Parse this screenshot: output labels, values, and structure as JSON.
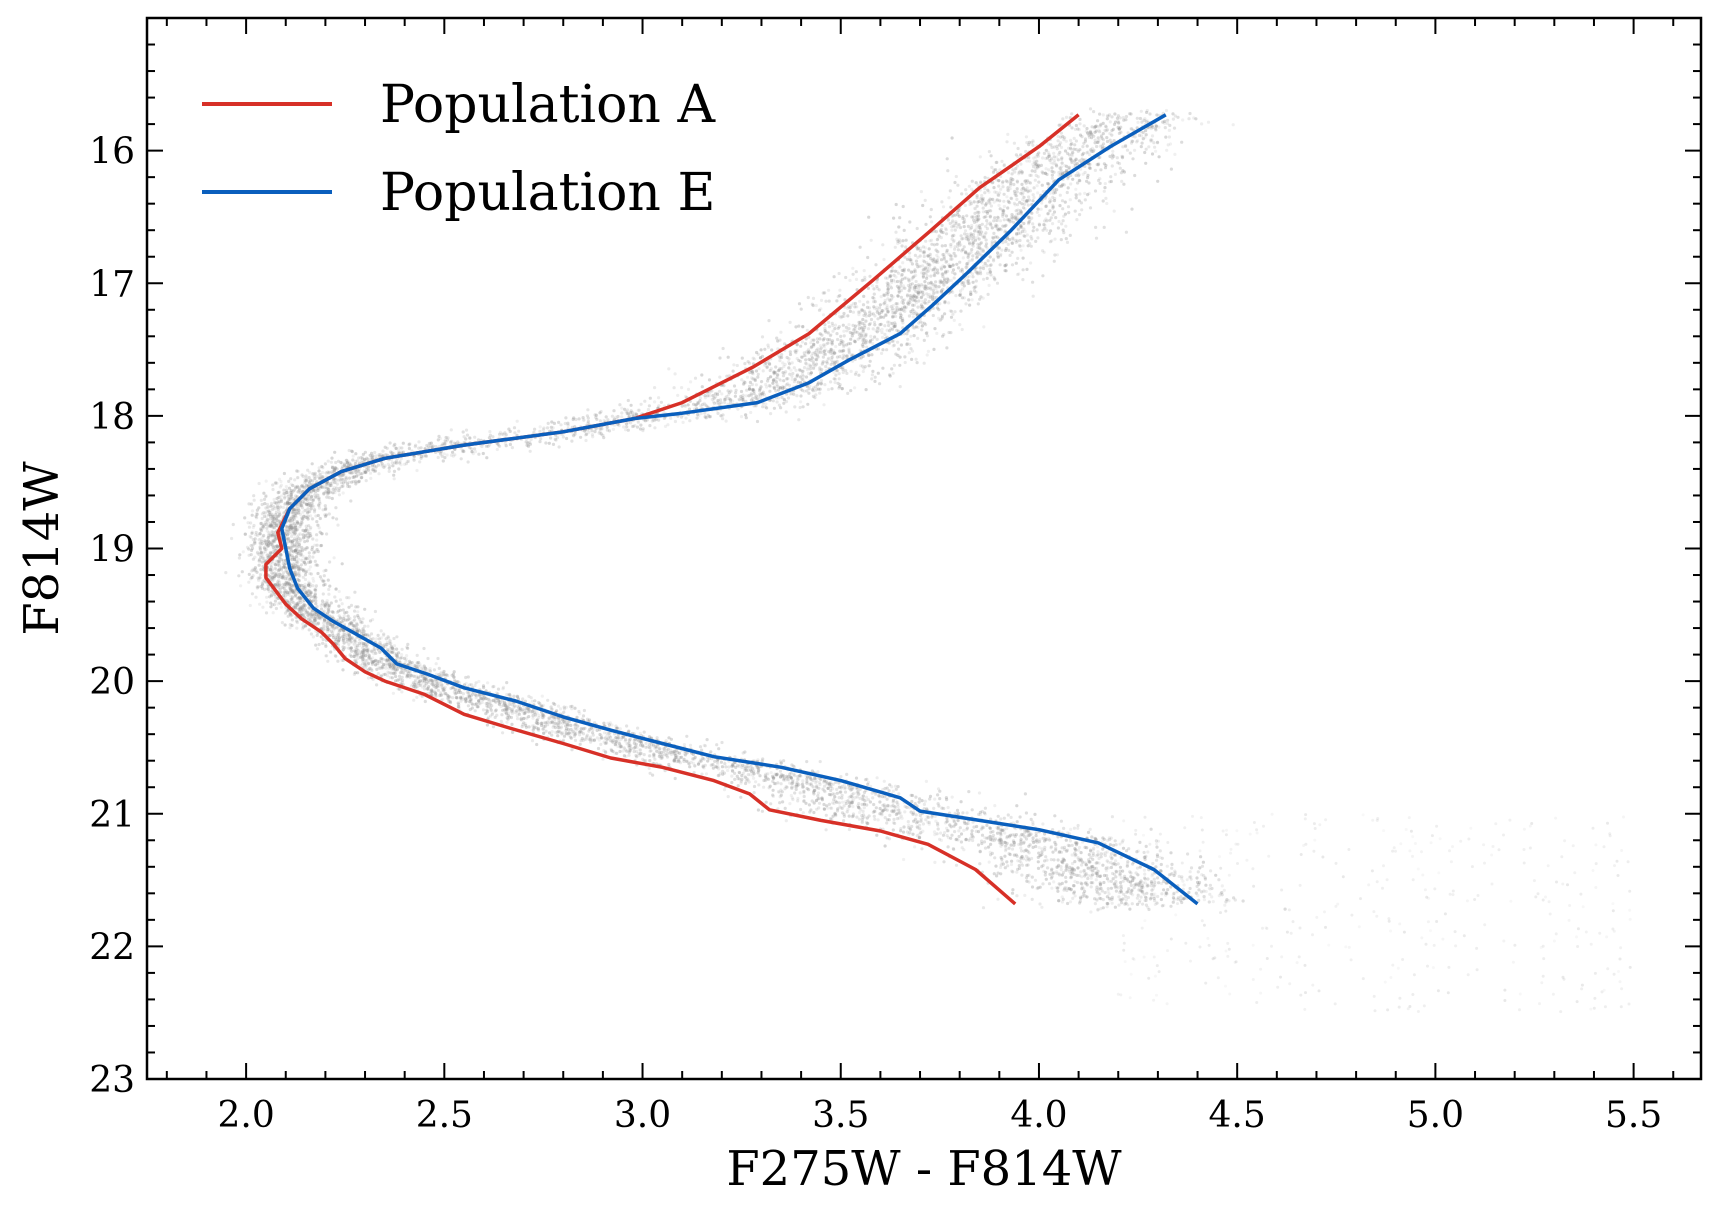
{
  "chart_data": {
    "type": "scatter",
    "title": "",
    "xlabel": "F275W - F814W",
    "ylabel": "F814W",
    "xlim": [
      1.75,
      5.67
    ],
    "ylim": [
      23.0,
      15.0
    ],
    "y_inverted": true,
    "x_ticks": [
      2.0,
      2.5,
      3.0,
      3.5,
      4.0,
      4.5,
      5.0,
      5.5
    ],
    "x_tick_labels": [
      "2.0",
      "2.5",
      "3.0",
      "3.5",
      "4.0",
      "4.5",
      "5.0",
      "5.5"
    ],
    "y_ticks": [
      16,
      17,
      18,
      19,
      20,
      21,
      22,
      23
    ],
    "y_tick_labels": [
      "16",
      "17",
      "18",
      "19",
      "20",
      "21",
      "22",
      "23"
    ],
    "grid": false,
    "legend_position": "top-left",
    "background_points_color": "#8c8c8c",
    "series": [
      {
        "name": "Population A",
        "color": "#d73027",
        "x": [
          4.1,
          4.0,
          3.85,
          3.72,
          3.58,
          3.42,
          3.28,
          3.1,
          2.98,
          2.8,
          2.55,
          2.35,
          2.24,
          2.16,
          2.11,
          2.08,
          2.09,
          2.05,
          2.05,
          2.07,
          2.1,
          2.14,
          2.19,
          2.22,
          2.25,
          2.3,
          2.35,
          2.45,
          2.55,
          2.66,
          2.8,
          2.92,
          3.05,
          3.18,
          3.27,
          3.32,
          3.45,
          3.6,
          3.72,
          3.84,
          3.94
        ],
        "y": [
          15.73,
          15.97,
          16.28,
          16.62,
          16.98,
          17.38,
          17.63,
          17.9,
          18.02,
          18.12,
          18.22,
          18.32,
          18.42,
          18.55,
          18.7,
          18.88,
          19.0,
          19.12,
          19.22,
          19.3,
          19.42,
          19.53,
          19.63,
          19.72,
          19.83,
          19.93,
          20.0,
          20.1,
          20.25,
          20.35,
          20.47,
          20.58,
          20.65,
          20.75,
          20.85,
          20.97,
          21.05,
          21.13,
          21.23,
          21.42,
          21.68
        ]
      },
      {
        "name": "Population E",
        "color": "#0a5fbd",
        "x": [
          4.32,
          4.18,
          4.05,
          3.93,
          3.82,
          3.73,
          3.65,
          3.52,
          3.42,
          3.29,
          3.1,
          2.98,
          2.8,
          2.55,
          2.35,
          2.24,
          2.16,
          2.11,
          2.09,
          2.1,
          2.11,
          2.13,
          2.17,
          2.22,
          2.28,
          2.34,
          2.38,
          2.46,
          2.55,
          2.68,
          2.8,
          2.92,
          3.05,
          3.18,
          3.35,
          3.5,
          3.65,
          3.7,
          3.85,
          4.0,
          4.15,
          4.29,
          4.4
        ],
        "y": [
          15.73,
          15.97,
          16.22,
          16.6,
          16.92,
          17.17,
          17.38,
          17.58,
          17.75,
          17.9,
          17.98,
          18.02,
          18.12,
          18.22,
          18.32,
          18.42,
          18.55,
          18.7,
          18.85,
          19.0,
          19.15,
          19.3,
          19.45,
          19.55,
          19.65,
          19.75,
          19.87,
          19.95,
          20.05,
          20.15,
          20.27,
          20.37,
          20.47,
          20.57,
          20.65,
          20.75,
          20.88,
          20.98,
          21.05,
          21.12,
          21.22,
          21.42,
          21.68
        ]
      }
    ]
  }
}
